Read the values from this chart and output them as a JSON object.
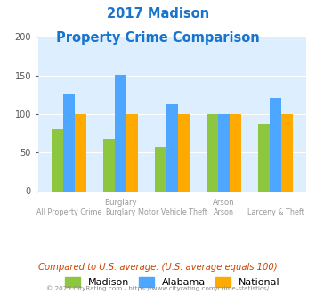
{
  "title_line1": "2017 Madison",
  "title_line2": "Property Crime Comparison",
  "title_color": "#1874cd",
  "categories": [
    "All Property Crime",
    "Burglary",
    "Motor Vehicle Theft",
    "Arson",
    "Larceny & Theft"
  ],
  "group_labels_top": [
    "",
    "Burglary",
    "",
    "Arson",
    ""
  ],
  "madison_values": [
    80,
    68,
    57,
    100,
    87
  ],
  "alabama_values": [
    125,
    151,
    112,
    100,
    121
  ],
  "national_values": [
    100,
    100,
    100,
    100,
    100
  ],
  "madison_color": "#8dc63f",
  "alabama_color": "#4da6ff",
  "national_color": "#ffaa00",
  "ylim": [
    0,
    200
  ],
  "yticks": [
    0,
    50,
    100,
    150,
    200
  ],
  "bg_color": "#ddeeff",
  "footer_text": "Compared to U.S. average. (U.S. average equals 100)",
  "footer_color": "#cc4400",
  "copyright_text": "© 2025 CityRating.com - https://www.cityrating.com/crime-statistics/",
  "copyright_color": "#888888",
  "legend_labels": [
    "Madison",
    "Alabama",
    "National"
  ]
}
